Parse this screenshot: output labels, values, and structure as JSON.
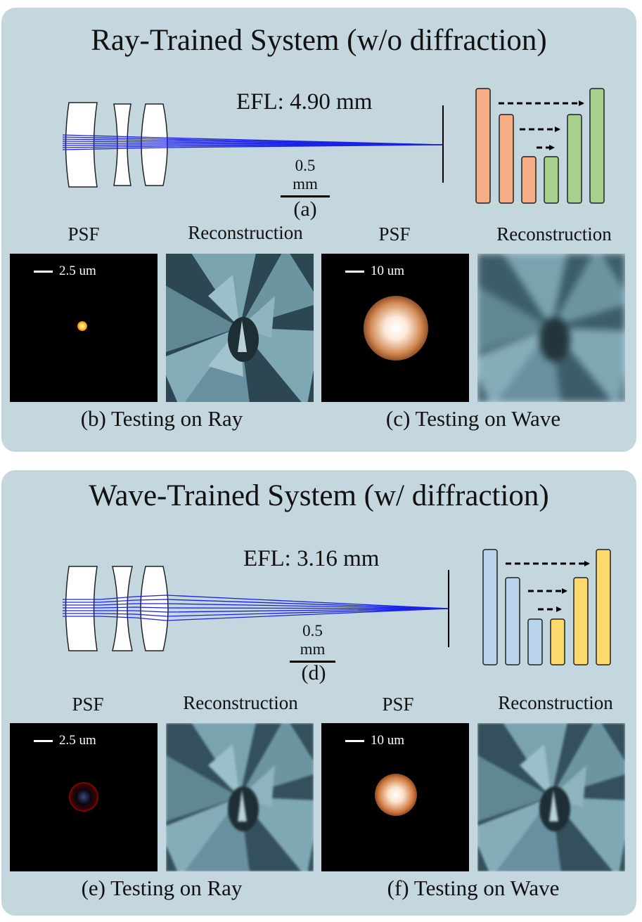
{
  "panels": [
    {
      "title": "Ray-Trained System (w/o diffraction)",
      "efl": "EFL: 4.90 mm",
      "scale": "0.5 mm",
      "letter": "(a)",
      "network_colors": {
        "encoder": "#f4ad84",
        "decoder": "#a7d08c"
      },
      "column_labels": [
        "PSF",
        "Reconstruction",
        "PSF",
        "Reconstruction"
      ],
      "psf_scales": [
        "2.5 um",
        "10 um"
      ],
      "captions": [
        "(b) Testing on Ray",
        "(c) Testing on Wave"
      ]
    },
    {
      "title": "Wave-Trained System (w/ diffraction)",
      "efl": "EFL: 3.16 mm",
      "scale": "0.5 mm",
      "letter": "(d)",
      "network_colors": {
        "encoder": "#b8d3ea",
        "decoder": "#fdd96c"
      },
      "column_labels": [
        "PSF",
        "Reconstruction",
        "PSF",
        "Reconstruction"
      ],
      "psf_scales": [
        "2.5 um",
        "10 um"
      ],
      "captions": [
        "(e) Testing on Ray",
        "(f) Testing on Wave"
      ]
    }
  ],
  "colors": {
    "panel_bg": "#c4d6de",
    "rays": "#1a22e6"
  }
}
